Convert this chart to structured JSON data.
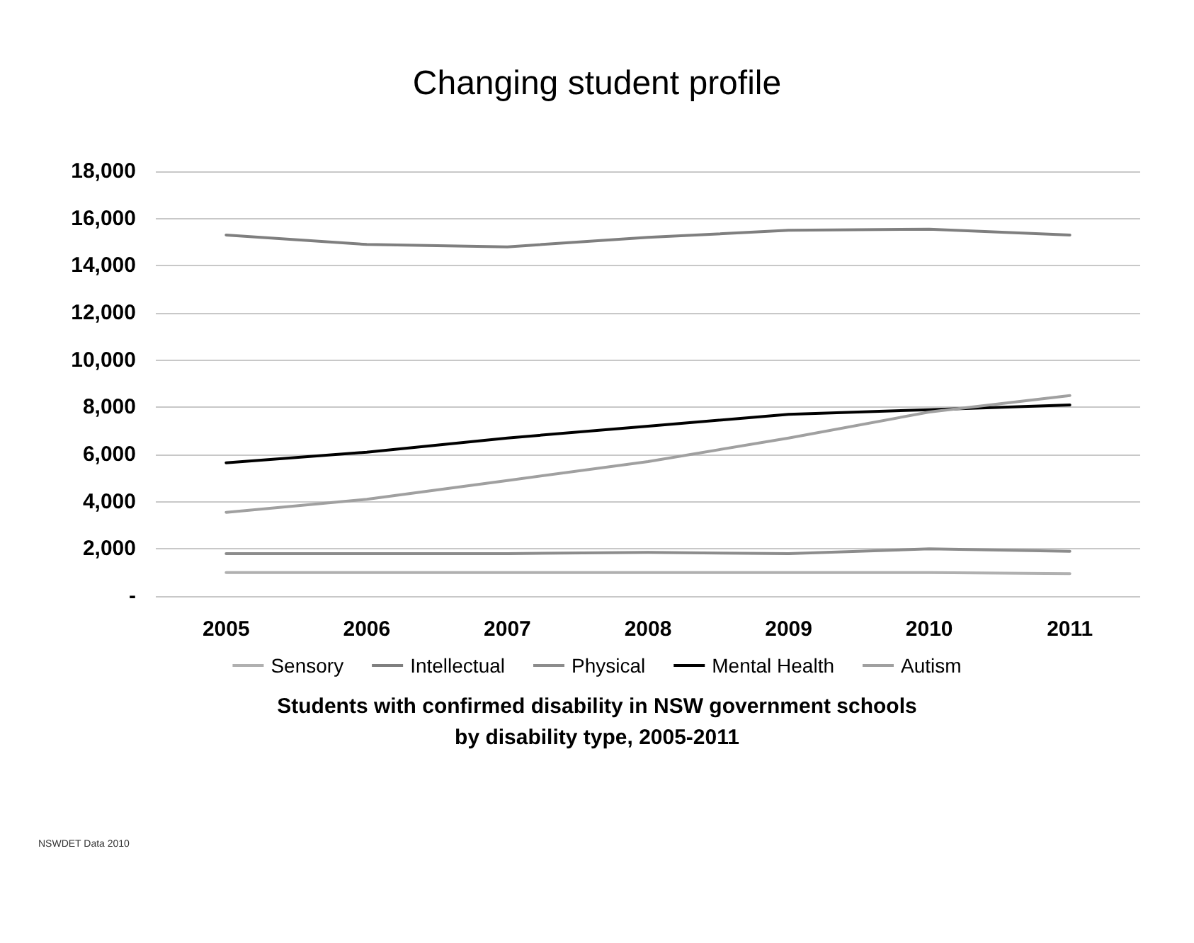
{
  "chart_data": {
    "type": "line",
    "title": "Changing student profile",
    "categories": [
      "2005",
      "2006",
      "2007",
      "2008",
      "2009",
      "2010",
      "2011"
    ],
    "series": [
      {
        "name": "Sensory",
        "color": "#b0b0b0",
        "values": [
          1000,
          1000,
          1000,
          1000,
          1000,
          1000,
          950
        ]
      },
      {
        "name": "Intellectual",
        "color": "#7f7f7f",
        "values": [
          15300,
          14900,
          14800,
          15200,
          15500,
          15550,
          15300
        ]
      },
      {
        "name": "Physical",
        "color": "#8c8c8c",
        "values": [
          1800,
          1800,
          1800,
          1850,
          1800,
          2000,
          1900
        ]
      },
      {
        "name": "Mental Health",
        "color": "#000000",
        "values": [
          5650,
          6100,
          6700,
          7200,
          7700,
          7900,
          8100
        ]
      },
      {
        "name": "Autism",
        "color": "#a0a0a0",
        "values": [
          3550,
          4100,
          4900,
          5700,
          6700,
          7800,
          8500
        ]
      }
    ],
    "ylim": [
      0,
      18000
    ],
    "yticks": [
      {
        "value": 0,
        "label": "-"
      },
      {
        "value": 2000,
        "label": "2,000"
      },
      {
        "value": 4000,
        "label": "4,000"
      },
      {
        "value": 6000,
        "label": "6,000"
      },
      {
        "value": 8000,
        "label": "8,000"
      },
      {
        "value": 10000,
        "label": "10,000"
      },
      {
        "value": 12000,
        "label": "12,000"
      },
      {
        "value": 14000,
        "label": "14,000"
      },
      {
        "value": 16000,
        "label": "16,000"
      },
      {
        "value": 18000,
        "label": "18,000"
      }
    ],
    "grid": "y",
    "legend": "bottom",
    "marker": "none",
    "line_style": "solid",
    "annotations": [
      "Students with confirmed disability in NSW government schools\nby disability type, 2005-2011",
      "NSWDET Data 2010"
    ]
  }
}
